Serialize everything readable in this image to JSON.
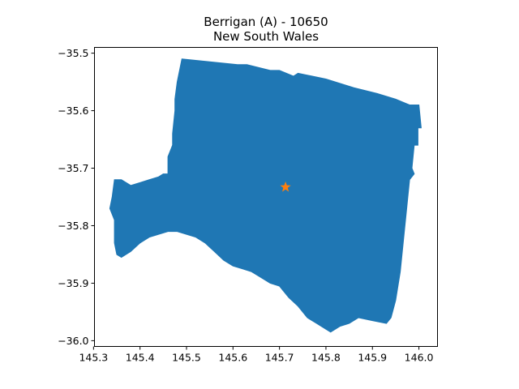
{
  "figure": {
    "title_line1": "Berrigan (A) - 10650",
    "title_line2": "New South Wales"
  },
  "chart_data": {
    "type": "map",
    "region_name": "Berrigan (A) - 10650",
    "state": "New South Wales",
    "xlim": [
      145.302,
      146.04
    ],
    "ylim": [
      -36.01,
      -35.49
    ],
    "xticks": [
      145.3,
      145.4,
      145.5,
      145.6,
      145.7,
      145.8,
      145.9,
      146.0
    ],
    "xtick_labels": [
      "145.3",
      "145.4",
      "145.5",
      "145.6",
      "145.7",
      "145.8",
      "145.9",
      "146.0"
    ],
    "yticks": [
      -35.5,
      -35.6,
      -35.7,
      -35.8,
      -35.9,
      -36.0
    ],
    "ytick_labels": [
      "−35.5",
      "−35.6",
      "−35.7",
      "−35.8",
      "−35.9",
      "−36.0"
    ],
    "fill_color": "#1f77b4",
    "marker_color": "#ff7f0e",
    "marker": "star",
    "centroid": [
      145.713,
      -35.733
    ],
    "boundary": [
      [
        145.49,
        -35.51
      ],
      [
        145.55,
        -35.515
      ],
      [
        145.61,
        -35.52
      ],
      [
        145.63,
        -35.52
      ],
      [
        145.68,
        -35.53
      ],
      [
        145.7,
        -35.53
      ],
      [
        145.73,
        -35.54
      ],
      [
        145.74,
        -35.535
      ],
      [
        145.8,
        -35.545
      ],
      [
        145.86,
        -35.56
      ],
      [
        145.91,
        -35.57
      ],
      [
        145.95,
        -35.58
      ],
      [
        145.98,
        -35.59
      ],
      [
        146.0,
        -35.59
      ],
      [
        146.005,
        -35.63
      ],
      [
        145.998,
        -35.63
      ],
      [
        145.998,
        -35.66
      ],
      [
        145.99,
        -35.66
      ],
      [
        145.985,
        -35.7
      ],
      [
        145.99,
        -35.71
      ],
      [
        145.98,
        -35.72
      ],
      [
        145.96,
        -35.88
      ],
      [
        145.95,
        -35.93
      ],
      [
        145.94,
        -35.96
      ],
      [
        145.93,
        -35.97
      ],
      [
        145.9,
        -35.965
      ],
      [
        145.87,
        -35.96
      ],
      [
        145.85,
        -35.97
      ],
      [
        145.83,
        -35.975
      ],
      [
        145.81,
        -35.985
      ],
      [
        145.8,
        -35.98
      ],
      [
        145.78,
        -35.97
      ],
      [
        145.76,
        -35.96
      ],
      [
        145.74,
        -35.94
      ],
      [
        145.72,
        -35.925
      ],
      [
        145.7,
        -35.905
      ],
      [
        145.68,
        -35.9
      ],
      [
        145.66,
        -35.89
      ],
      [
        145.64,
        -35.88
      ],
      [
        145.62,
        -35.875
      ],
      [
        145.6,
        -35.87
      ],
      [
        145.58,
        -35.86
      ],
      [
        145.56,
        -35.845
      ],
      [
        145.54,
        -35.83
      ],
      [
        145.52,
        -35.82
      ],
      [
        145.5,
        -35.815
      ],
      [
        145.48,
        -35.81
      ],
      [
        145.46,
        -35.81
      ],
      [
        145.44,
        -35.815
      ],
      [
        145.42,
        -35.82
      ],
      [
        145.4,
        -35.83
      ],
      [
        145.38,
        -35.845
      ],
      [
        145.36,
        -35.855
      ],
      [
        145.35,
        -35.85
      ],
      [
        145.345,
        -35.83
      ],
      [
        145.345,
        -35.79
      ],
      [
        145.335,
        -35.77
      ],
      [
        145.34,
        -35.75
      ],
      [
        145.345,
        -35.72
      ],
      [
        145.36,
        -35.72
      ],
      [
        145.38,
        -35.73
      ],
      [
        145.4,
        -35.725
      ],
      [
        145.42,
        -35.72
      ],
      [
        145.44,
        -35.715
      ],
      [
        145.45,
        -35.71
      ],
      [
        145.46,
        -35.71
      ],
      [
        145.46,
        -35.68
      ],
      [
        145.47,
        -35.66
      ],
      [
        145.47,
        -35.64
      ],
      [
        145.475,
        -35.6
      ],
      [
        145.475,
        -35.58
      ],
      [
        145.48,
        -35.55
      ]
    ]
  }
}
